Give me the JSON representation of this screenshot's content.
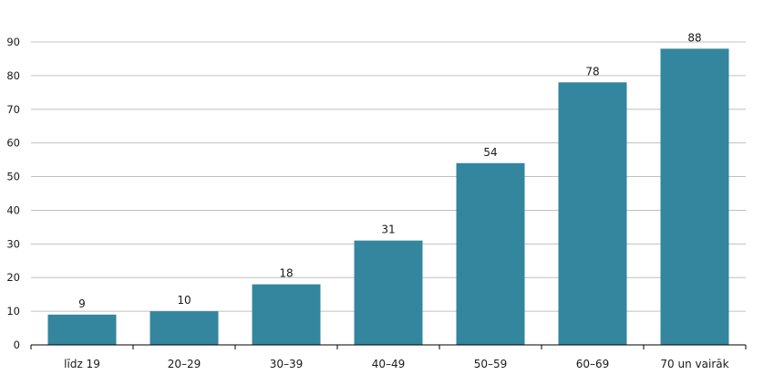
{
  "chart_data": {
    "type": "bar",
    "categories": [
      "līdz 19",
      "20–29",
      "30–39",
      "40–49",
      "50–59",
      "60–69",
      "70 un vairāk"
    ],
    "values": [
      9,
      10,
      18,
      31,
      54,
      78,
      88
    ],
    "value_labels": [
      "9",
      "10",
      "18",
      "31",
      "54",
      "78",
      "88"
    ],
    "y_ticks": [
      "0",
      "10",
      "20",
      "30",
      "40",
      "50",
      "60",
      "70",
      "80",
      "90"
    ],
    "ylim": [
      0,
      90
    ],
    "grid": true,
    "colors": {
      "bar": "#33869e",
      "grid": "#c0c0c0",
      "axis": "#000000"
    }
  }
}
